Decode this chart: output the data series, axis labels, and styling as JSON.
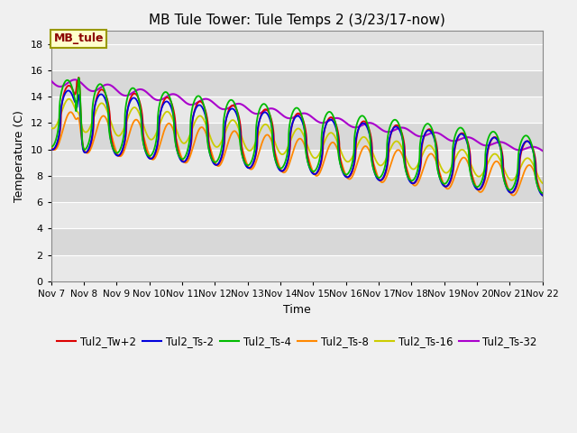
{
  "title": "MB Tule Tower: Tule Temps 2 (3/23/17-now)",
  "xlabel": "Time",
  "ylabel": "Temperature (C)",
  "ylim": [
    0,
    19
  ],
  "yticks": [
    0,
    2,
    4,
    6,
    8,
    10,
    12,
    14,
    16,
    18
  ],
  "series_colors": {
    "Tul2_Tw+2": "#dd0000",
    "Tul2_Ts-2": "#0000dd",
    "Tul2_Ts-4": "#00bb00",
    "Tul2_Ts-8": "#ff8800",
    "Tul2_Ts-16": "#cccc00",
    "Tul2_Ts-32": "#aa00cc"
  },
  "annotation_text": "MB_tule",
  "x_start": 7,
  "x_end": 22,
  "xtick_labels": [
    "Nov 7",
    "Nov 8",
    "Nov 9",
    "Nov 10",
    "Nov 11",
    "Nov 12",
    "Nov 13",
    "Nov 14",
    "Nov 15",
    "Nov 16",
    "Nov 17",
    "Nov 18",
    "Nov 19",
    "Nov 20",
    "Nov 21",
    "Nov 22"
  ],
  "xtick_positions": [
    7,
    8,
    9,
    10,
    11,
    12,
    13,
    14,
    15,
    16,
    17,
    18,
    19,
    20,
    21,
    22
  ],
  "stripe_colors": [
    "#e8e8e8",
    "#d8d8d8"
  ]
}
